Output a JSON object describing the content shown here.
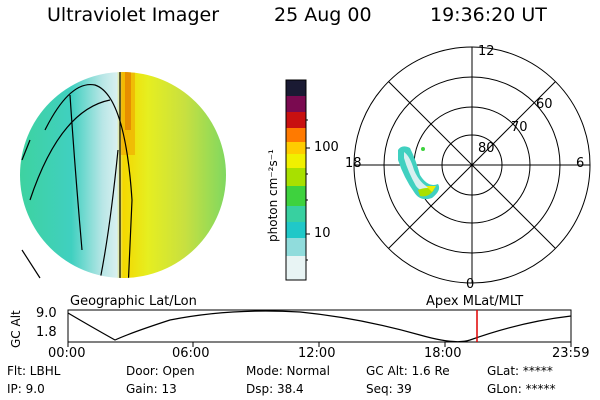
{
  "header": {
    "instrument": "Ultraviolet Imager",
    "date": "25 Aug 00",
    "time": "19:36:20 UT"
  },
  "colorbar": {
    "unit_label": "photon cm⁻²s⁻¹",
    "ticks": [
      "100",
      "10"
    ],
    "colors": [
      "#1a1a33",
      "#7a0a50",
      "#c81010",
      "#ff7a00",
      "#ffcc00",
      "#f0f000",
      "#a8e000",
      "#3ed23e",
      "#38d0a0",
      "#20c8c8",
      "#90dcdc",
      "#e8f4f4"
    ]
  },
  "polar_plot": {
    "lat_labels": [
      "60",
      "70",
      "80"
    ],
    "mlt_labels": [
      "12",
      "18",
      "6",
      "0"
    ]
  },
  "panel_labels": {
    "left": "Geographic Lat/Lon",
    "right": "Apex MLat/MLT"
  },
  "altitude_plot": {
    "ylabel": "GC Alt",
    "yticks": [
      "9.0",
      "1.8"
    ],
    "xticks": [
      "00:00",
      "06:00",
      "12:00",
      "18:00",
      "23:59"
    ],
    "current_time_hours": 19.6
  },
  "info": {
    "flt": "Flt: LBHL",
    "ip": "IP:  9.0",
    "door": "Door: Open",
    "gain": "Gain: 13",
    "mode": "Mode: Normal",
    "dsp": "Dsp:   38.4",
    "gcalt": "GC Alt: 1.6 Re",
    "seq": "Seq: 39",
    "glat": "GLat: *****",
    "glon": "GLon: *****"
  }
}
